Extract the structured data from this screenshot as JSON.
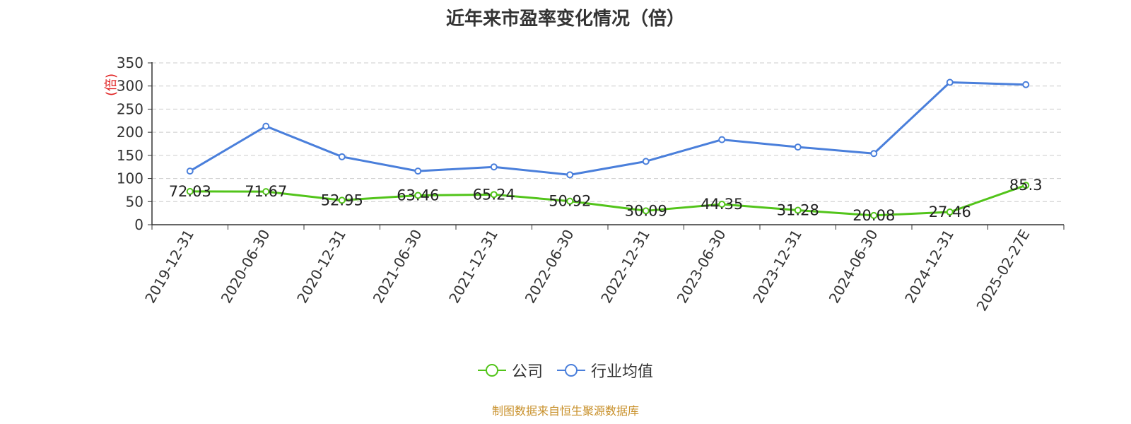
{
  "chart_data": {
    "type": "line",
    "title": "近年来市盈率变化情况（倍）",
    "ylabel": "(倍)",
    "xlabel": "",
    "ylim": [
      0,
      350
    ],
    "yticks": [
      0,
      50,
      100,
      150,
      200,
      250,
      300,
      350
    ],
    "grid": true,
    "legend_position": "bottom",
    "categories": [
      "2019-12-31",
      "2020-06-30",
      "2020-12-31",
      "2021-06-30",
      "2021-12-31",
      "2022-06-30",
      "2022-12-31",
      "2023-06-30",
      "2023-12-31",
      "2024-06-30",
      "2024-12-31",
      "2025-02-27E"
    ],
    "series": [
      {
        "name": "公司",
        "color": "#52c41a",
        "values": [
          72.03,
          71.67,
          52.95,
          63.46,
          65.24,
          50.92,
          30.09,
          44.35,
          31.28,
          20.08,
          27.46,
          85.3
        ],
        "labels": [
          "72.03",
          "71.67",
          "52.95",
          "63.46",
          "65.24",
          "50.92",
          "30.09",
          "44.35",
          "31.28",
          "20.08",
          "27.46",
          "85.3"
        ]
      },
      {
        "name": "行业均值",
        "color": "#4a7fdb",
        "values": [
          116,
          213,
          147,
          116,
          125,
          108,
          137,
          184,
          168,
          154,
          308,
          303
        ]
      }
    ],
    "source": "制图数据来自恒生聚源数据库"
  }
}
